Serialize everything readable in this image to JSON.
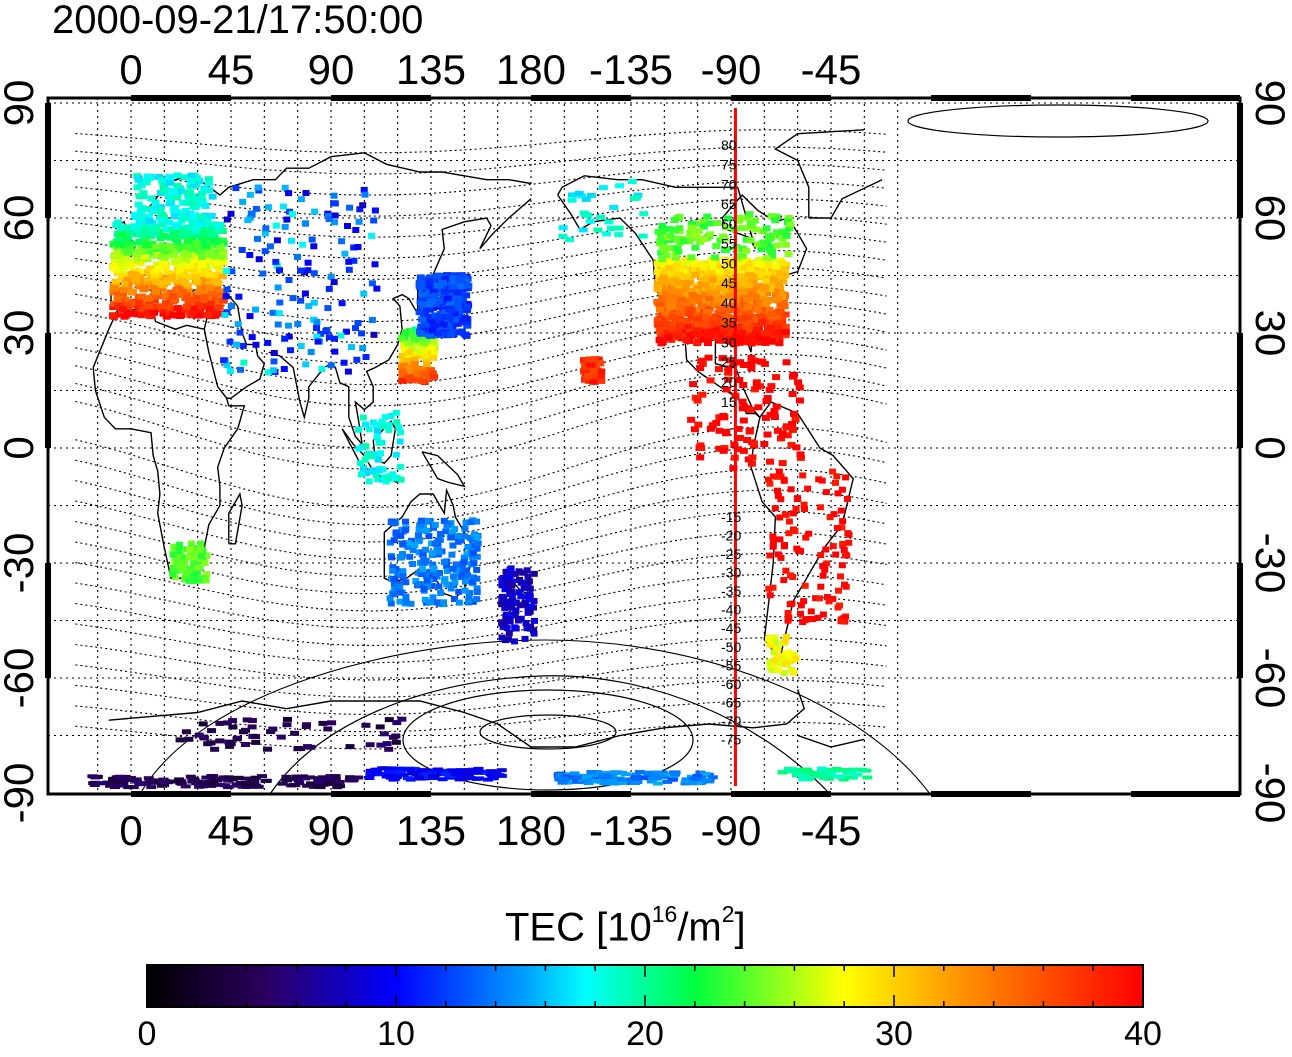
{
  "title": "2000-09-21/17:50:00",
  "map": {
    "lon_ticks_labels": [
      "0",
      "45",
      "90",
      "135",
      "180",
      "-135",
      "-90",
      "-45"
    ],
    "lat_ticks_labels": [
      "90",
      "60",
      "30",
      "0",
      "-30",
      "-60",
      "-90"
    ],
    "contour_labels": [
      "80",
      "75",
      "70",
      "65",
      "60",
      "55",
      "50",
      "45",
      "40",
      "35",
      "30",
      "25",
      "20",
      "15",
      "-15",
      "-20",
      "-25",
      "-30",
      "-35",
      "-40",
      "-45",
      "-50",
      "-55",
      "-60",
      "-65",
      "-70",
      "-75"
    ],
    "meridian_line_longitude": -88,
    "meridian_line_color": "#ff0000"
  },
  "colorbar": {
    "title_prefix": "TEC  [10",
    "title_exp1": "16",
    "title_mid": "/m",
    "title_exp2": "2",
    "title_suffix": "]",
    "ticks": [
      "0",
      "10",
      "20",
      "30",
      "40"
    ],
    "range": [
      0,
      40
    ]
  }
}
